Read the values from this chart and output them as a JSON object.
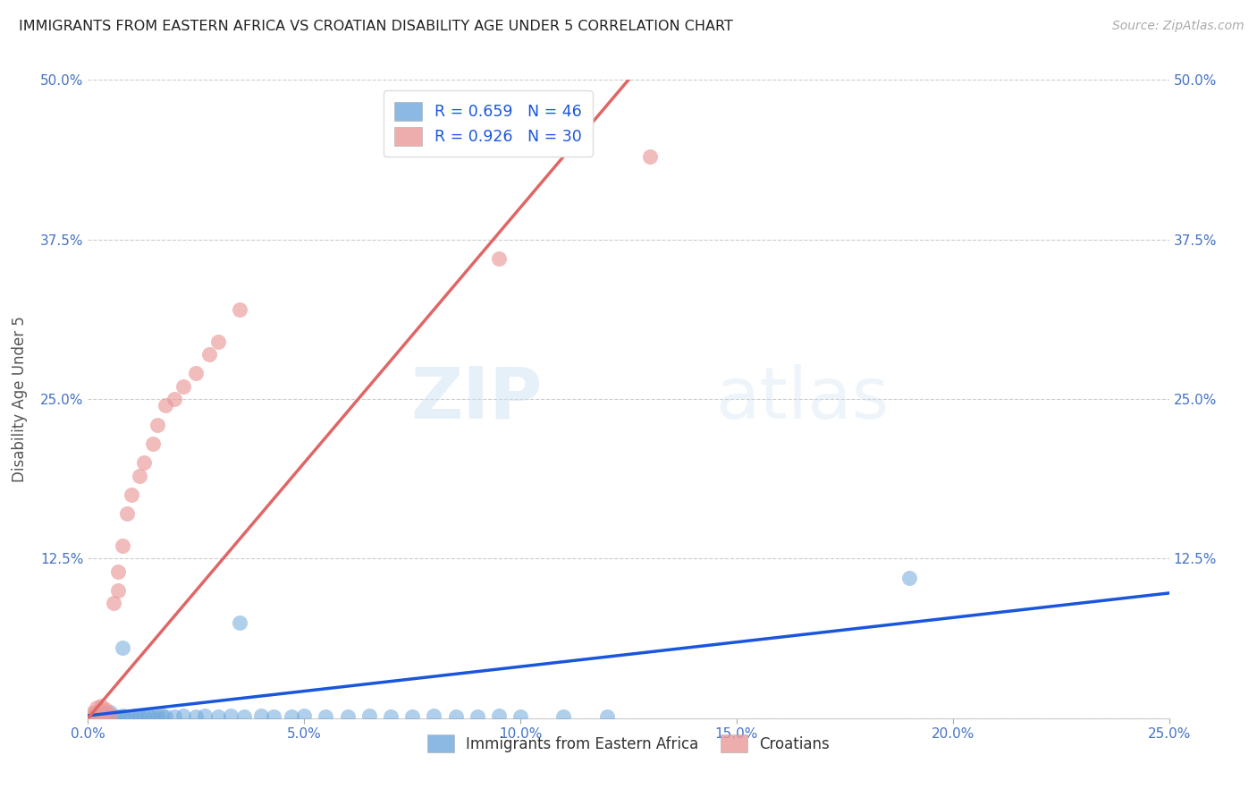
{
  "title": "IMMIGRANTS FROM EASTERN AFRICA VS CROATIAN DISABILITY AGE UNDER 5 CORRELATION CHART",
  "source": "Source: ZipAtlas.com",
  "ylabel": "Disability Age Under 5",
  "xlim": [
    0.0,
    0.25
  ],
  "ylim": [
    0.0,
    0.5
  ],
  "xticks": [
    0.0,
    0.05,
    0.1,
    0.15,
    0.2,
    0.25
  ],
  "yticks": [
    0.0,
    0.125,
    0.25,
    0.375,
    0.5
  ],
  "xticklabels": [
    "0.0%",
    "5.0%",
    "10.0%",
    "15.0%",
    "20.0%",
    "25.0%"
  ],
  "yticklabels": [
    "",
    "12.5%",
    "25.0%",
    "37.5%",
    "50.0%"
  ],
  "legend1_label": "R = 0.659   N = 46",
  "legend2_label": "R = 0.926   N = 30",
  "legend_bottom1": "Immigrants from Eastern Africa",
  "legend_bottom2": "Croatians",
  "blue_color": "#6fa8dc",
  "pink_color": "#ea9999",
  "blue_line_color": "#1a56db",
  "pink_line_color": "#e06666",
  "watermark": "ZIPatlas",
  "title_color": "#222222",
  "axis_label_color": "#4472c4",
  "blue_scatter": [
    [
      0.001,
      0.001
    ],
    [
      0.002,
      0.002
    ],
    [
      0.003,
      0.001
    ],
    [
      0.003,
      0.003
    ],
    [
      0.004,
      0.001
    ],
    [
      0.005,
      0.002
    ],
    [
      0.006,
      0.001
    ],
    [
      0.007,
      0.001
    ],
    [
      0.008,
      0.002
    ],
    [
      0.009,
      0.001
    ],
    [
      0.01,
      0.001
    ],
    [
      0.011,
      0.002
    ],
    [
      0.012,
      0.001
    ],
    [
      0.013,
      0.001
    ],
    [
      0.014,
      0.002
    ],
    [
      0.015,
      0.001
    ],
    [
      0.016,
      0.001
    ],
    [
      0.017,
      0.002
    ],
    [
      0.018,
      0.001
    ],
    [
      0.02,
      0.001
    ],
    [
      0.022,
      0.002
    ],
    [
      0.025,
      0.001
    ],
    [
      0.027,
      0.002
    ],
    [
      0.03,
      0.001
    ],
    [
      0.033,
      0.002
    ],
    [
      0.036,
      0.001
    ],
    [
      0.04,
      0.002
    ],
    [
      0.043,
      0.001
    ],
    [
      0.047,
      0.001
    ],
    [
      0.05,
      0.002
    ],
    [
      0.055,
      0.001
    ],
    [
      0.06,
      0.001
    ],
    [
      0.065,
      0.002
    ],
    [
      0.07,
      0.001
    ],
    [
      0.075,
      0.001
    ],
    [
      0.08,
      0.002
    ],
    [
      0.085,
      0.001
    ],
    [
      0.09,
      0.001
    ],
    [
      0.095,
      0.002
    ],
    [
      0.1,
      0.001
    ],
    [
      0.11,
      0.001
    ],
    [
      0.12,
      0.001
    ],
    [
      0.008,
      0.055
    ],
    [
      0.035,
      0.075
    ],
    [
      0.19,
      0.11
    ],
    [
      0.005,
      0.005
    ]
  ],
  "pink_scatter": [
    [
      0.001,
      0.002
    ],
    [
      0.001,
      0.004
    ],
    [
      0.002,
      0.003
    ],
    [
      0.002,
      0.005
    ],
    [
      0.002,
      0.008
    ],
    [
      0.003,
      0.002
    ],
    [
      0.003,
      0.006
    ],
    [
      0.003,
      0.01
    ],
    [
      0.004,
      0.004
    ],
    [
      0.004,
      0.007
    ],
    [
      0.005,
      0.003
    ],
    [
      0.006,
      0.09
    ],
    [
      0.007,
      0.1
    ],
    [
      0.007,
      0.115
    ],
    [
      0.008,
      0.135
    ],
    [
      0.009,
      0.16
    ],
    [
      0.01,
      0.175
    ],
    [
      0.012,
      0.19
    ],
    [
      0.013,
      0.2
    ],
    [
      0.015,
      0.215
    ],
    [
      0.016,
      0.23
    ],
    [
      0.018,
      0.245
    ],
    [
      0.02,
      0.25
    ],
    [
      0.022,
      0.26
    ],
    [
      0.025,
      0.27
    ],
    [
      0.028,
      0.285
    ],
    [
      0.03,
      0.295
    ],
    [
      0.035,
      0.32
    ],
    [
      0.13,
      0.44
    ],
    [
      0.095,
      0.36
    ]
  ],
  "blue_line": [
    [
      0.0,
      0.002
    ],
    [
      0.25,
      0.098
    ]
  ],
  "pink_line": [
    [
      0.0,
      0.0
    ],
    [
      0.125,
      0.5
    ]
  ]
}
